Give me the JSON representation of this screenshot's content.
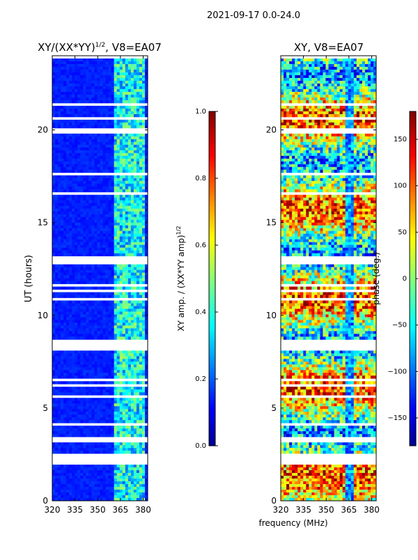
{
  "page_title": "2021-09-17 0.0-24.0",
  "chart_data": [
    {
      "type": "heatmap",
      "title": "XY/(XX*YY)",
      "title_sup": "1/2",
      "title_suffix": ", V8=EA07",
      "xlabel": "frequency (MHz)",
      "ylabel": "UT (hours)",
      "xlim": [
        320,
        383
      ],
      "ylim": [
        0,
        24
      ],
      "xticks": [
        320,
        335,
        350,
        365,
        380
      ],
      "yticks": [
        0,
        5,
        10,
        15,
        20
      ],
      "colormap": "jet",
      "colorbar": {
        "label": "XY amp. / (XX*YY amp)",
        "label_sup": "1/2",
        "range": [
          0.0,
          1.0
        ],
        "ticks": [
          "0.0",
          "0.2",
          "0.4",
          "0.6",
          "0.8",
          "1.0"
        ]
      }
    },
    {
      "type": "heatmap",
      "title": "XY, V8=EA07",
      "xlabel": "frequency (MHz)",
      "ylabel": "",
      "xlim": [
        320,
        383
      ],
      "ylim": [
        0,
        24
      ],
      "xticks": [
        320,
        335,
        350,
        365,
        380
      ],
      "yticks": [
        0,
        5,
        10,
        15,
        20
      ],
      "colormap": "jet",
      "colorbar": {
        "label": "phase (deg.)",
        "range": [
          -180,
          180
        ],
        "ticks": [
          "150",
          "100",
          "50",
          "0",
          "−50",
          "−100",
          "−150"
        ]
      }
    }
  ],
  "shared_xlabel": "frequency (MHz)",
  "colors": {
    "jet_dark_blue": "#00008f",
    "jet_blue": "#0000ff",
    "jet_cyan": "#00ffff",
    "jet_yellow": "#ffff00",
    "jet_red": "#ff0000",
    "jet_dark_red": "#800000"
  }
}
